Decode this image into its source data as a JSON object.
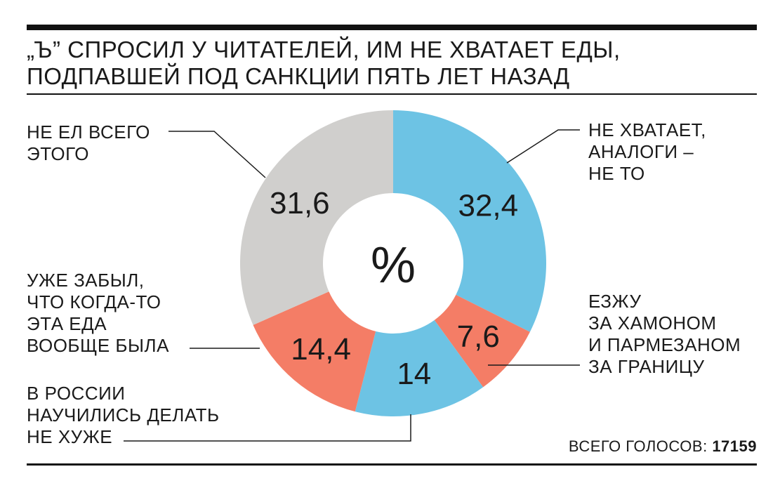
{
  "title": "„Ъ” СПРОСИЛ У ЧИТАТЕЛЕЙ, ИМ НЕ ХВАТАЕТ ЕДЫ, ПОДПАВШЕЙ ПОД САНКЦИИ ПЯТЬ ЛЕТ НАЗАД",
  "center_label": "%",
  "total_label": "ВСЕГО ГОЛОСОВ:",
  "total_value": "17159",
  "colors": {
    "blue": "#6dc3e4",
    "salmon": "#f47d66",
    "gray": "#d0cfcd",
    "text": "#1a1a1a"
  },
  "chart_data": {
    "type": "pie",
    "donut": true,
    "unit": "%",
    "slices": [
      {
        "label": "НЕ ХВАТАЕТ,\nАНАЛОГИ –\nНЕ ТО",
        "value": 32.4,
        "display": "32,4",
        "color": "#6dc3e4"
      },
      {
        "label": "ЕЗЖУ\nЗА ХАМОНОМ\nИ ПАРМЕЗАНОМ\nЗА ГРАНИЦУ",
        "value": 7.6,
        "display": "7,6",
        "color": "#f47d66"
      },
      {
        "label": "В РОССИИ\nНАУЧИЛИСЬ ДЕЛАТЬ\nНЕ ХУЖЕ",
        "value": 14,
        "display": "14",
        "color": "#6dc3e4"
      },
      {
        "label": "УЖЕ ЗАБЫЛ,\nЧТО КОГДА-ТО\nЭТА ЕДА\nВООБЩЕ БЫЛА",
        "value": 14.4,
        "display": "14,4",
        "color": "#f47d66"
      },
      {
        "label": "НЕ ЕЛ ВСЕГО\nЭТОГО",
        "value": 31.6,
        "display": "31,6",
        "color": "#d0cfcd"
      }
    ]
  }
}
